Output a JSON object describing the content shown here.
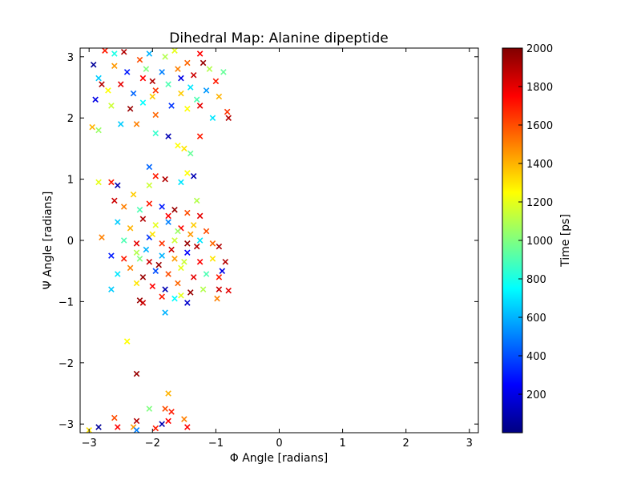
{
  "chart_data": {
    "type": "scatter",
    "title": "Dihedral Map: Alanine dipeptide",
    "xlabel": "Φ Angle [radians]",
    "ylabel": "Ψ Angle [radians]",
    "xlim": [
      -3.14159,
      3.14159
    ],
    "ylim": [
      -3.14159,
      3.14159
    ],
    "xticks": [
      -3,
      -2,
      -1,
      0,
      1,
      2,
      3
    ],
    "yticks": [
      -3,
      -2,
      -1,
      0,
      1,
      2,
      3
    ],
    "xtick_labels": [
      "−3",
      "−2",
      "−1",
      "0",
      "1",
      "2",
      "3"
    ],
    "ytick_labels": [
      "−3",
      "−2",
      "−1",
      "0",
      "1",
      "2",
      "3"
    ],
    "marker": "x",
    "grid": false,
    "colormap": "jet",
    "colorbar": {
      "label": "Time [ps]",
      "range": [
        0,
        2000
      ],
      "ticks": [
        200,
        400,
        600,
        800,
        1000,
        1200,
        1400,
        1600,
        1800,
        2000
      ],
      "tick_labels": [
        "200",
        "400",
        "600",
        "800",
        "1000",
        "1200",
        "1400",
        "1600",
        "1800",
        "2000"
      ],
      "stops": [
        "#000080",
        "#0000ff",
        "#0080ff",
        "#00ffff",
        "#80ff80",
        "#ffff00",
        "#ff8000",
        "#ff0000",
        "#800000"
      ]
    },
    "series": [
      {
        "points": [
          [
            -2.93,
            2.87,
            50
          ],
          [
            -2.6,
            3.05,
            800
          ],
          [
            -2.4,
            2.75,
            300
          ],
          [
            -2.2,
            2.95,
            1600
          ],
          [
            -2.0,
            2.6,
            1900
          ],
          [
            -1.8,
            3.0,
            1100
          ],
          [
            -1.6,
            2.8,
            1500
          ],
          [
            -1.4,
            2.5,
            700
          ],
          [
            -1.2,
            2.9,
            1950
          ],
          [
            -1.0,
            2.6,
            1700
          ],
          [
            -2.85,
            2.65,
            650
          ],
          [
            -2.7,
            2.45,
            1250
          ],
          [
            -2.5,
            2.55,
            1800
          ],
          [
            -2.3,
            2.4,
            450
          ],
          [
            -2.1,
            2.8,
            1000
          ],
          [
            -1.95,
            2.45,
            1650
          ],
          [
            -1.75,
            2.55,
            900
          ],
          [
            -1.55,
            2.4,
            1350
          ],
          [
            -1.35,
            2.7,
            1850
          ],
          [
            -1.15,
            2.45,
            550
          ],
          [
            -0.95,
            2.35,
            1400
          ],
          [
            -2.75,
            3.1,
            1700
          ],
          [
            -2.45,
            3.08,
            1900
          ],
          [
            -2.05,
            3.05,
            600
          ],
          [
            -1.65,
            3.1,
            1200
          ],
          [
            -1.25,
            3.05,
            1750
          ],
          [
            -0.88,
            2.75,
            950
          ],
          [
            -2.9,
            2.3,
            200
          ],
          [
            -2.65,
            2.2,
            1150
          ],
          [
            -2.35,
            2.15,
            1950
          ],
          [
            -2.15,
            2.25,
            750
          ],
          [
            -1.95,
            2.05,
            1550
          ],
          [
            -1.7,
            2.2,
            350
          ],
          [
            -1.45,
            2.15,
            1250
          ],
          [
            -1.25,
            2.2,
            1800
          ],
          [
            -1.05,
            2.0,
            700
          ],
          [
            -0.82,
            2.1,
            1650
          ],
          [
            -0.8,
            2.0,
            1900
          ],
          [
            -2.95,
            1.85,
            1400
          ],
          [
            -2.85,
            1.8,
            1050
          ],
          [
            -2.5,
            1.9,
            650
          ],
          [
            -2.25,
            1.9,
            1500
          ],
          [
            -1.95,
            1.75,
            850
          ],
          [
            -1.75,
            1.7,
            100
          ],
          [
            -1.6,
            1.55,
            1250
          ],
          [
            -1.5,
            1.5,
            1300
          ],
          [
            -1.4,
            1.42,
            950
          ],
          [
            -1.25,
            1.7,
            1700
          ],
          [
            -2.6,
            2.85,
            1450
          ],
          [
            -2.15,
            2.65,
            1750
          ],
          [
            -1.85,
            2.75,
            500
          ],
          [
            -1.45,
            2.9,
            1550
          ],
          [
            -1.1,
            2.8,
            1100
          ],
          [
            -2.8,
            2.55,
            1900
          ],
          [
            -2.0,
            2.35,
            1350
          ],
          [
            -1.55,
            2.65,
            200
          ],
          [
            -1.3,
            2.3,
            900
          ],
          [
            -2.85,
            0.95,
            1200
          ],
          [
            -2.65,
            0.95,
            1700
          ],
          [
            -2.55,
            0.9,
            100
          ],
          [
            -2.3,
            0.75,
            1350
          ],
          [
            -2.05,
            0.9,
            1150
          ],
          [
            -1.95,
            1.05,
            1700
          ],
          [
            -1.8,
            1.0,
            1900
          ],
          [
            -1.55,
            0.95,
            700
          ],
          [
            -1.45,
            1.1,
            1250
          ],
          [
            -1.35,
            1.05,
            100
          ],
          [
            -2.05,
            1.2,
            450
          ],
          [
            -2.6,
            0.65,
            1850
          ],
          [
            -2.45,
            0.55,
            1500
          ],
          [
            -2.2,
            0.5,
            900
          ],
          [
            -2.05,
            0.6,
            1700
          ],
          [
            -1.85,
            0.55,
            300
          ],
          [
            -1.65,
            0.5,
            1950
          ],
          [
            -1.45,
            0.45,
            1600
          ],
          [
            -1.3,
            0.65,
            1100
          ],
          [
            -1.25,
            0.4,
            1800
          ],
          [
            -2.55,
            0.3,
            650
          ],
          [
            -2.35,
            0.2,
            1400
          ],
          [
            -2.15,
            0.35,
            1900
          ],
          [
            -1.95,
            0.25,
            1200
          ],
          [
            -1.75,
            0.3,
            500
          ],
          [
            -1.55,
            0.2,
            1750
          ],
          [
            -1.35,
            0.25,
            1350
          ],
          [
            -1.15,
            0.15,
            1600
          ],
          [
            -2.8,
            0.05,
            1500
          ],
          [
            -2.45,
            0.0,
            900
          ],
          [
            -2.25,
            -0.05,
            1800
          ],
          [
            -2.05,
            0.05,
            350
          ],
          [
            -1.85,
            -0.05,
            1650
          ],
          [
            -1.65,
            0.0,
            1150
          ],
          [
            -1.45,
            -0.05,
            1950
          ],
          [
            -1.25,
            0.0,
            700
          ],
          [
            -1.05,
            -0.05,
            1550
          ],
          [
            -0.95,
            -0.1,
            1900
          ],
          [
            -2.65,
            -0.25,
            300
          ],
          [
            -2.45,
            -0.3,
            1700
          ],
          [
            -2.25,
            -0.2,
            1100
          ],
          [
            -2.05,
            -0.35,
            1850
          ],
          [
            -1.85,
            -0.25,
            600
          ],
          [
            -1.65,
            -0.3,
            1450
          ],
          [
            -1.45,
            -0.2,
            250
          ],
          [
            -1.25,
            -0.35,
            1750
          ],
          [
            -1.05,
            -0.3,
            1300
          ],
          [
            -0.85,
            -0.35,
            1900
          ],
          [
            -2.55,
            -0.55,
            700
          ],
          [
            -2.35,
            -0.45,
            1500
          ],
          [
            -2.15,
            -0.6,
            1950
          ],
          [
            -1.95,
            -0.5,
            400
          ],
          [
            -1.75,
            -0.55,
            1600
          ],
          [
            -1.55,
            -0.45,
            1200
          ],
          [
            -1.35,
            -0.6,
            1800
          ],
          [
            -1.15,
            -0.55,
            900
          ],
          [
            -0.95,
            -0.6,
            1700
          ],
          [
            -0.9,
            -0.5,
            200
          ],
          [
            -2.65,
            -0.8,
            650
          ],
          [
            -2.25,
            -0.7,
            1300
          ],
          [
            -2.0,
            -0.75,
            1750
          ],
          [
            -1.8,
            -0.8,
            100
          ],
          [
            -1.6,
            -0.7,
            1550
          ],
          [
            -1.4,
            -0.85,
            1950
          ],
          [
            -1.2,
            -0.8,
            1100
          ],
          [
            -0.95,
            -0.8,
            1850
          ],
          [
            -0.8,
            -0.82,
            1800
          ],
          [
            -0.98,
            -0.95,
            1500
          ],
          [
            -2.2,
            -0.98,
            1950
          ],
          [
            -2.15,
            -1.02,
            1850
          ],
          [
            -1.85,
            -0.92,
            1700
          ],
          [
            -1.65,
            -0.95,
            750
          ],
          [
            -1.45,
            -1.02,
            150
          ],
          [
            -1.55,
            -0.9,
            1200
          ],
          [
            -1.8,
            -1.18,
            600
          ],
          [
            -2.4,
            -1.65,
            1250
          ],
          [
            -2.25,
            -2.18,
            1950
          ],
          [
            -1.75,
            -2.5,
            1400
          ],
          [
            -1.8,
            -2.75,
            1600
          ],
          [
            -1.7,
            -2.8,
            1700
          ],
          [
            -1.75,
            -2.95,
            1750
          ],
          [
            -1.5,
            -2.92,
            1500
          ],
          [
            -1.45,
            -3.05,
            1750
          ],
          [
            -2.05,
            -2.75,
            1000
          ],
          [
            -2.25,
            -2.95,
            1900
          ],
          [
            -2.3,
            -3.05,
            1450
          ],
          [
            -2.6,
            -2.9,
            1600
          ],
          [
            -2.55,
            -3.05,
            1750
          ],
          [
            -2.85,
            -3.05,
            50
          ],
          [
            -3.0,
            -3.1,
            1300
          ],
          [
            -1.85,
            -3.0,
            100
          ],
          [
            -1.95,
            -3.07,
            1700
          ],
          [
            -2.25,
            -3.1,
            500
          ],
          [
            -2.2,
            -0.3,
            1000
          ],
          [
            -2.0,
            0.1,
            1300
          ],
          [
            -1.7,
            -0.15,
            1850
          ],
          [
            -1.6,
            0.15,
            1050
          ],
          [
            -1.4,
            0.1,
            1450
          ],
          [
            -1.3,
            -0.1,
            1900
          ],
          [
            -1.5,
            -0.35,
            1150
          ],
          [
            -1.9,
            -0.4,
            1950
          ],
          [
            -2.1,
            -0.15,
            600
          ],
          [
            -1.75,
            0.4,
            1750
          ]
        ]
      }
    ]
  }
}
